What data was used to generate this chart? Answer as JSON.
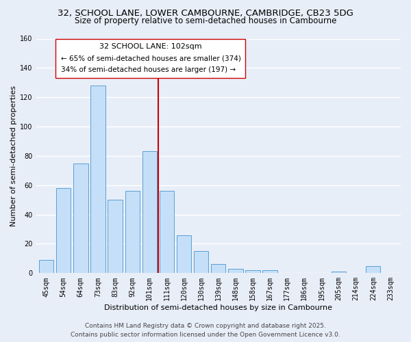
{
  "title_line1": "32, SCHOOL LANE, LOWER CAMBOURNE, CAMBRIDGE, CB23 5DG",
  "title_line2": "Size of property relative to semi-detached houses in Cambourne",
  "xlabel": "Distribution of semi-detached houses by size in Cambourne",
  "ylabel": "Number of semi-detached properties",
  "bin_labels": [
    "45sqm",
    "54sqm",
    "64sqm",
    "73sqm",
    "83sqm",
    "92sqm",
    "101sqm",
    "111sqm",
    "120sqm",
    "130sqm",
    "139sqm",
    "148sqm",
    "158sqm",
    "167sqm",
    "177sqm",
    "186sqm",
    "195sqm",
    "205sqm",
    "214sqm",
    "224sqm",
    "233sqm"
  ],
  "bar_values": [
    9,
    58,
    75,
    128,
    50,
    56,
    83,
    56,
    26,
    15,
    6,
    3,
    2,
    2,
    0,
    0,
    0,
    1,
    0,
    5,
    0
  ],
  "bar_color": "#c5dff8",
  "bar_edge_color": "#5a9fd4",
  "background_color": "#e8eef8",
  "grid_color": "#ffffff",
  "reference_line_color": "#cc0000",
  "annotation_title": "32 SCHOOL LANE: 102sqm",
  "annotation_line1": "← 65% of semi-detached houses are smaller (374)",
  "annotation_line2": "34% of semi-detached houses are larger (197) →",
  "ylim": [
    0,
    160
  ],
  "yticks": [
    0,
    20,
    40,
    60,
    80,
    100,
    120,
    140,
    160
  ],
  "footer_line1": "Contains HM Land Registry data © Crown copyright and database right 2025.",
  "footer_line2": "Contains public sector information licensed under the Open Government Licence v3.0.",
  "title_fontsize": 9.5,
  "subtitle_fontsize": 8.5,
  "axis_label_fontsize": 8,
  "tick_fontsize": 7,
  "annotation_title_fontsize": 8,
  "annotation_body_fontsize": 7.5,
  "footer_fontsize": 6.5
}
